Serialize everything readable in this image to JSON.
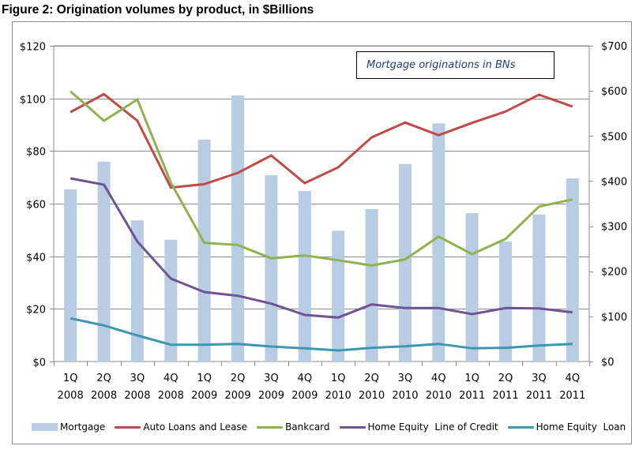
{
  "chart_data": {
    "type": "bar+line",
    "title": "Figure 2: Origination  volumes by product, in $Billions",
    "annotation": "Mortgage originations in BNs",
    "categories": [
      [
        "1Q",
        "2008"
      ],
      [
        "2Q",
        "2008"
      ],
      [
        "3Q",
        "2008"
      ],
      [
        "4Q",
        "2008"
      ],
      [
        "1Q",
        "2009"
      ],
      [
        "2Q",
        "2009"
      ],
      [
        "3Q",
        "2009"
      ],
      [
        "4Q",
        "2009"
      ],
      [
        "1Q",
        "2010"
      ],
      [
        "2Q",
        "2010"
      ],
      [
        "3Q",
        "2010"
      ],
      [
        "4Q",
        "2010"
      ],
      [
        "1Q",
        "2011"
      ],
      [
        "2Q",
        "2011"
      ],
      [
        "3Q",
        "2011"
      ],
      [
        "4Q",
        "2011"
      ]
    ],
    "left_axis": {
      "min": 0,
      "max": 120,
      "step": 20,
      "tick_labels": [
        "$0",
        "$20",
        "$40",
        "$60",
        "$80",
        "$100",
        "$120"
      ],
      "gridlines": true
    },
    "right_axis": {
      "min": 0,
      "max": 700,
      "step": 100,
      "tick_labels": [
        "$0",
        "$100",
        "$200",
        "$300",
        "$400",
        "$500",
        "$600",
        "$700"
      ]
    },
    "legend_position": "bottom",
    "series": [
      {
        "name": "Mortgage",
        "type": "bar",
        "axis": "right",
        "color": "#B8CCE4",
        "values": [
          382,
          443,
          313,
          270,
          492,
          590,
          413,
          378,
          290,
          338,
          438,
          528,
          329,
          266,
          326,
          406
        ]
      },
      {
        "name": "Auto Loans and Lease",
        "type": "line",
        "axis": "left",
        "color": "#BE4B48",
        "values": [
          94.8,
          101.6,
          91.5,
          66.1,
          67.4,
          71.7,
          78.3,
          67.8,
          73.8,
          85.2,
          90.8,
          86.0,
          90.7,
          95.0,
          101.4,
          96.9
        ]
      },
      {
        "name": "Bankcard",
        "type": "line",
        "axis": "left",
        "color": "#8EB24F",
        "values": [
          102.7,
          91.5,
          99.6,
          68.0,
          45.1,
          44.3,
          39.2,
          40.3,
          38.5,
          36.5,
          38.8,
          47.5,
          40.8,
          46.6,
          58.9,
          61.6
        ]
      },
      {
        "name": "Home Equity  Line of Credit",
        "type": "line",
        "axis": "left",
        "color": "#6F5495",
        "values": [
          69.6,
          67.2,
          45.6,
          31.5,
          26.4,
          25.0,
          22.0,
          17.7,
          16.7,
          21.7,
          20.3,
          20.3,
          18.0,
          20.3,
          20.2,
          18.7
        ]
      },
      {
        "name": "Home Equity  Loan",
        "type": "line",
        "axis": "left",
        "color": "#3D97AE",
        "values": [
          16.4,
          13.7,
          9.9,
          6.4,
          6.4,
          6.7,
          5.7,
          5.0,
          4.2,
          5.2,
          5.8,
          6.7,
          5.0,
          5.2,
          6.1,
          6.7
        ]
      }
    ]
  }
}
